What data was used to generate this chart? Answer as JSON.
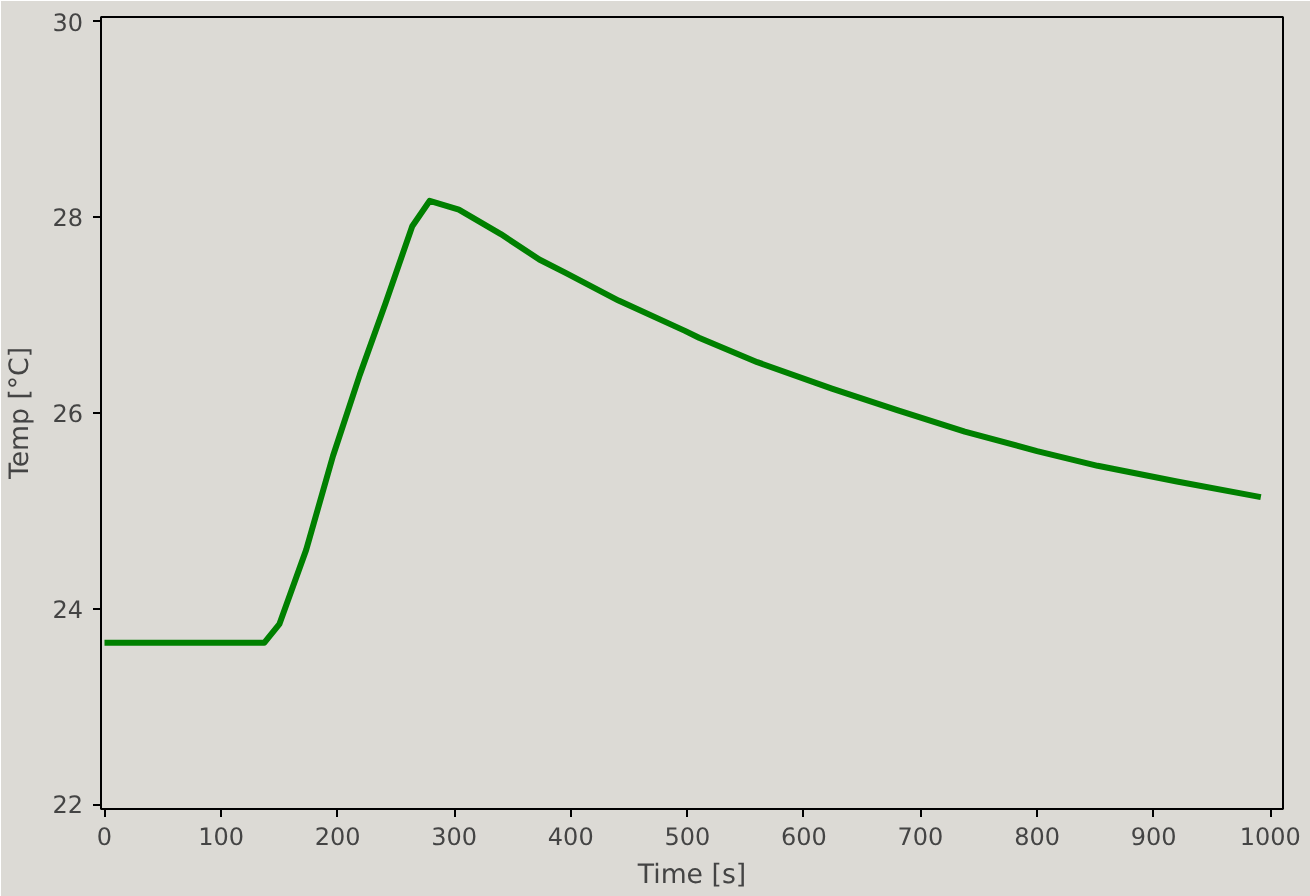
{
  "chart_data": {
    "type": "line",
    "xlabel": "Time [s]",
    "ylabel": "Temp [°C]",
    "x": [
      0,
      40,
      80,
      120,
      137,
      150,
      173,
      196,
      219,
      241,
      264,
      279,
      304,
      340,
      373,
      396,
      441,
      498,
      510,
      560,
      624,
      680,
      738,
      800,
      852,
      920,
      992
    ],
    "series": [
      {
        "color": "#008000",
        "values": [
          23.65,
          23.65,
          23.65,
          23.65,
          23.65,
          23.84,
          24.6,
          25.56,
          26.39,
          27.12,
          27.91,
          28.17,
          28.08,
          27.83,
          27.57,
          27.43,
          27.15,
          26.84,
          26.77,
          26.52,
          26.25,
          26.03,
          25.81,
          25.61,
          25.46,
          25.3,
          25.14
        ]
      }
    ],
    "xlim": [
      -3,
      1011
    ],
    "ylim": [
      21.95,
      30.05
    ],
    "xticks": [
      0,
      100,
      200,
      300,
      400,
      500,
      600,
      700,
      800,
      900,
      1000
    ],
    "yticks": [
      22,
      24,
      26,
      28,
      30
    ],
    "grid": false,
    "marker": "none",
    "line_style": "solid"
  }
}
